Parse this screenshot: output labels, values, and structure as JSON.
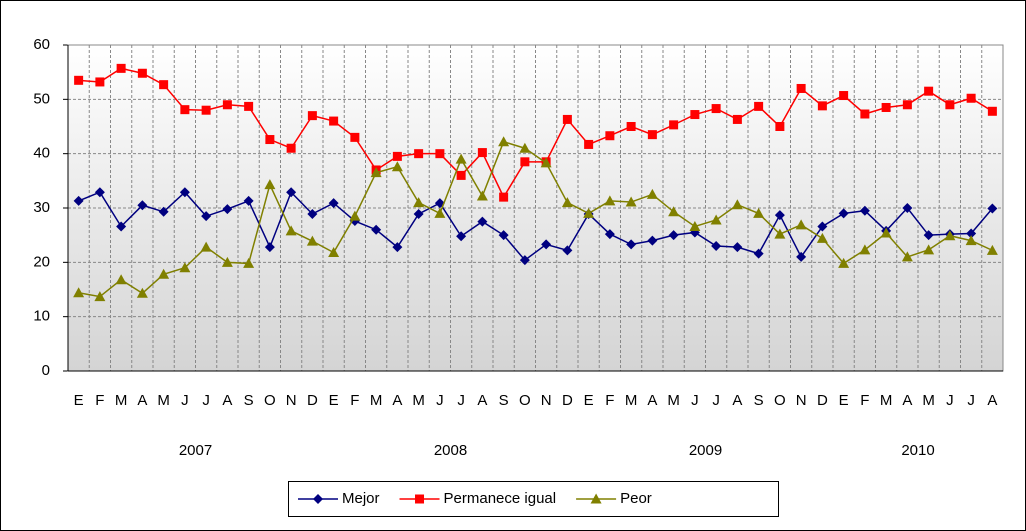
{
  "chart_data": {
    "type": "line",
    "categories": [
      "E",
      "F",
      "M",
      "A",
      "M",
      "J",
      "J",
      "A",
      "S",
      "O",
      "N",
      "D",
      "E",
      "F",
      "M",
      "A",
      "M",
      "J",
      "J",
      "A",
      "S",
      "O",
      "N",
      "D",
      "E",
      "F",
      "M",
      "A",
      "M",
      "J",
      "J",
      "A",
      "S",
      "O",
      "N",
      "D",
      "E",
      "F",
      "M",
      "A",
      "M",
      "J",
      "J",
      "A"
    ],
    "years": [
      "2007",
      "2008",
      "2009",
      "2010"
    ],
    "series": [
      {
        "name": "Mejor",
        "color": "#000080",
        "marker": "diamond",
        "values": [
          31.3,
          32.9,
          26.6,
          30.5,
          29.3,
          32.9,
          28.5,
          29.8,
          31.3,
          22.8,
          32.9,
          28.9,
          30.9,
          27.6,
          26.0,
          22.8,
          28.9,
          30.9,
          24.8,
          27.5,
          25.0,
          20.4,
          23.3,
          22.2,
          28.9,
          25.2,
          23.3,
          24.0,
          25.0,
          25.5,
          23.0,
          22.8,
          21.6,
          28.7,
          21.0,
          26.6,
          29.0,
          29.5,
          25.8,
          30.0,
          25.0,
          25.2,
          25.3,
          29.9
        ]
      },
      {
        "name": "Permanece igual",
        "color": "#ff0000",
        "marker": "square",
        "values": [
          53.5,
          53.2,
          55.7,
          54.8,
          52.7,
          48.1,
          48.0,
          49.0,
          48.7,
          42.6,
          41.0,
          47.0,
          46.0,
          43.0,
          37.0,
          39.5,
          40.0,
          40.0,
          36.0,
          40.2,
          32.0,
          38.5,
          38.5,
          46.3,
          41.7,
          43.3,
          45.0,
          43.5,
          45.3,
          47.2,
          48.3,
          46.3,
          48.7,
          45.0,
          52.0,
          48.8,
          50.7,
          47.3,
          48.5,
          49.0,
          51.5,
          49.0,
          50.2,
          47.8
        ]
      },
      {
        "name": "Peor",
        "color": "#808000",
        "marker": "triangle",
        "values": [
          14.4,
          13.7,
          16.8,
          14.3,
          17.8,
          19.0,
          22.8,
          20.0,
          19.8,
          34.3,
          25.8,
          23.9,
          21.8,
          28.5,
          36.5,
          37.6,
          31.0,
          29.0,
          39.0,
          32.2,
          42.2,
          41.0,
          38.3,
          31.0,
          29.0,
          31.3,
          31.1,
          32.5,
          29.3,
          26.6,
          27.8,
          30.6,
          29.0,
          25.2,
          26.9,
          24.4,
          19.8,
          22.3,
          25.4,
          21.0,
          22.3,
          24.9,
          24.0,
          22.2
        ]
      }
    ],
    "ylim": [
      0,
      60
    ],
    "yticks": [
      0,
      10,
      20,
      30,
      40,
      50,
      60
    ],
    "grid": true,
    "legend": "bottom"
  }
}
